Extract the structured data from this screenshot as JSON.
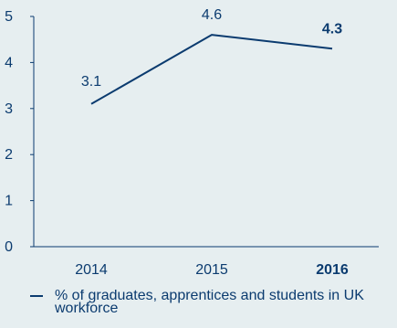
{
  "chart_data": {
    "type": "line",
    "categories": [
      "2014",
      "2015",
      "2016"
    ],
    "series": [
      {
        "name": "% of graduates, apprentices and students in UK workforce",
        "values": [
          3.1,
          4.6,
          4.3
        ]
      }
    ],
    "data_labels": [
      "3.1",
      "4.6",
      "4.3"
    ],
    "highlighted_category": "2016",
    "ylim": [
      0,
      5
    ],
    "yticks": [
      "0",
      "1",
      "2",
      "3",
      "4",
      "5"
    ],
    "grid": false,
    "legend_position": "bottom-left",
    "colors": {
      "line": "#0b3b6f",
      "text": "#0b3b6f",
      "background": "#e6eef0"
    }
  }
}
